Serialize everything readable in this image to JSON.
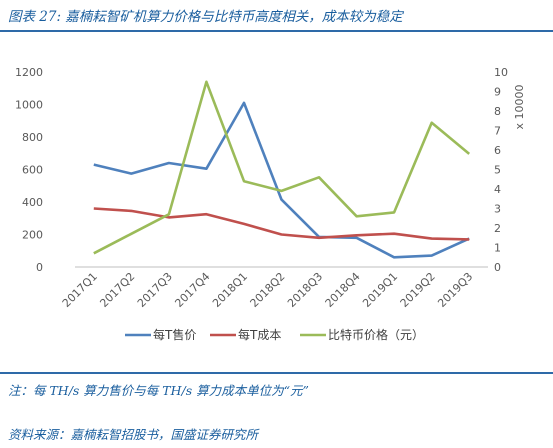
{
  "header": {
    "title": "图表 27: 嘉楠耘智矿机算力价格与比特币高度相关，成本较为稳定"
  },
  "footer": {
    "note": "注：每 TH/s 算力售价与每 TH/s 算力成本单位为“元”",
    "source": "资料来源：嘉楠耘智招股书，国盛证券研究所"
  },
  "chart_data": {
    "type": "line",
    "categories": [
      "2017Q1",
      "2017Q2",
      "2017Q3",
      "2017Q4",
      "2018Q1",
      "2018Q2",
      "2018Q3",
      "2018Q4",
      "2019Q1",
      "2019Q2",
      "2019Q3"
    ],
    "y_left": {
      "ticks": [
        "0",
        "200",
        "400",
        "600",
        "800",
        "1000",
        "1200"
      ],
      "ylim": [
        0,
        1200
      ]
    },
    "y_right": {
      "ticks": [
        "0",
        "1",
        "2",
        "3",
        "4",
        "5",
        "6",
        "7",
        "8",
        "9",
        "10"
      ],
      "ylim": [
        0,
        10
      ],
      "unit_label": "x 10000"
    },
    "series": [
      {
        "name": "每T售价",
        "axis": "left",
        "color": "#4f81bd",
        "values": [
          630,
          575,
          640,
          605,
          1010,
          415,
          185,
          180,
          60,
          70,
          175
        ]
      },
      {
        "name": "每T成本",
        "axis": "left",
        "color": "#c0504d",
        "values": [
          360,
          345,
          305,
          325,
          265,
          200,
          180,
          195,
          205,
          175,
          170
        ]
      },
      {
        "name": "比特币价格（元）",
        "axis": "right",
        "color": "#9bbb59",
        "values": [
          0.7,
          1.7,
          2.7,
          9.5,
          4.4,
          3.9,
          4.6,
          2.6,
          2.8,
          7.4,
          5.8
        ]
      }
    ],
    "legend_position": "bottom",
    "grid": false
  }
}
